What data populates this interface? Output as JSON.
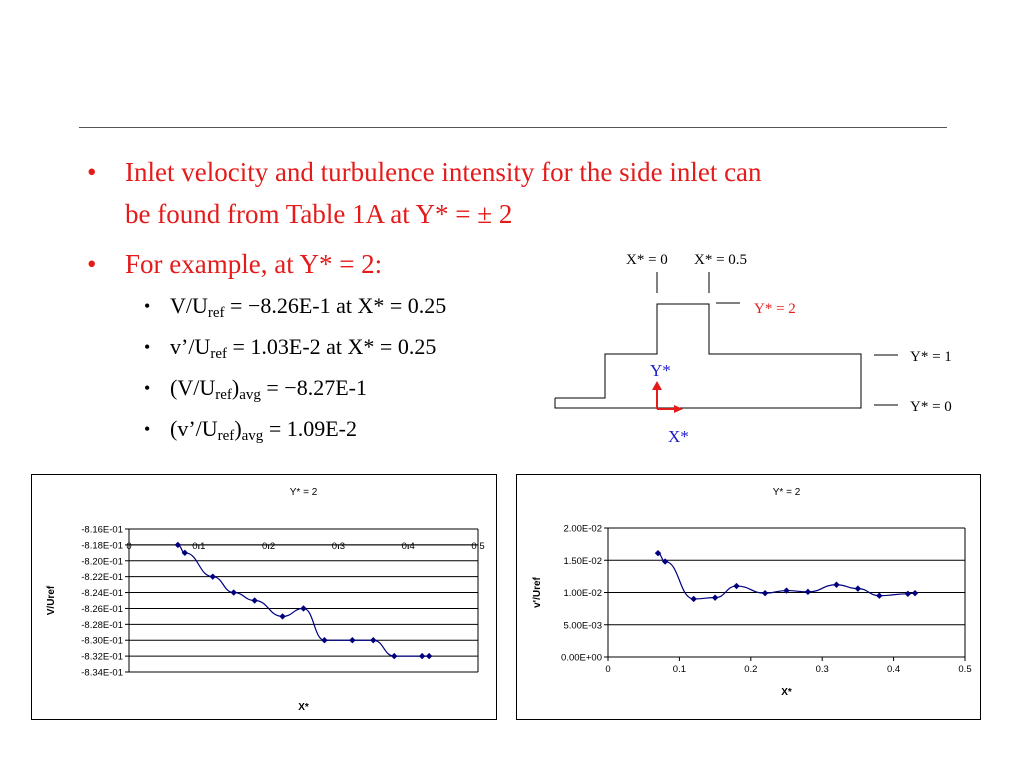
{
  "bullets": {
    "b1_line1": "Inlet velocity and turbulence intensity for the side inlet can",
    "b1_line2": "be found from Table 1A at Y* = ± 2",
    "b2": "For example, at Y* = 2:",
    "dot": "•",
    "sub": [
      {
        "pre": "V/U",
        "sub": "ref",
        "post": " = −8.26E-1 at X* = 0.25"
      },
      {
        "pre": "v’/U",
        "sub": "ref",
        "post": " = 1.03E-2 at X* = 0.25"
      },
      {
        "pre": "(V/U",
        "sub": "ref",
        "mid": ")",
        "sub2": "avg",
        "post": " = −8.27E-1"
      },
      {
        "pre": "(v’/U",
        "sub": "ref",
        "mid": ")",
        "sub2": "avg",
        "post": " = 1.09E-2"
      }
    ]
  },
  "diagram": {
    "x0_label": "X* = 0",
    "x05_label": "X* = 0.5",
    "y2_label": "Y* = 2",
    "y1_label": "Y* = 1",
    "y0_label": "Y* = 0",
    "yaxis_label": "Y*",
    "xaxis_label": "X*",
    "colors": {
      "red": "#e41b1b",
      "blue": "#1a1acc"
    }
  },
  "chart_data": [
    {
      "type": "line",
      "title": "Y* = 2",
      "xlabel": "X*",
      "ylabel": "V/Uref",
      "xlim": [
        0,
        0.5
      ],
      "ylim": [
        -0.834,
        -0.816
      ],
      "xticks": [
        "0",
        "0.1",
        "0.2",
        "0.3",
        "0.4",
        "0.5"
      ],
      "yticks": [
        "-8.16E-01",
        "-8.18E-01",
        "-8.20E-01",
        "-8.22E-01",
        "-8.24E-01",
        "-8.26E-01",
        "-8.28E-01",
        "-8.30E-01",
        "-8.32E-01",
        "-8.34E-01"
      ],
      "x": [
        0.07,
        0.08,
        0.12,
        0.15,
        0.18,
        0.22,
        0.25,
        0.28,
        0.32,
        0.35,
        0.38,
        0.42,
        0.43
      ],
      "y": [
        -0.818,
        -0.819,
        -0.822,
        -0.824,
        -0.825,
        -0.827,
        -0.826,
        -0.83,
        -0.83,
        -0.83,
        -0.832,
        -0.832,
        -0.832
      ],
      "grid": true,
      "color": "#00007f"
    },
    {
      "type": "line",
      "title": "Y* = 2",
      "xlabel": "X*",
      "ylabel": "v'/Uref",
      "xlim": [
        0,
        0.5
      ],
      "ylim": [
        0,
        0.02
      ],
      "xticks": [
        "0",
        "0.1",
        "0.2",
        "0.3",
        "0.4",
        "0.5"
      ],
      "yticks": [
        "2.00E-02",
        "1.50E-02",
        "1.00E-02",
        "5.00E-03",
        "0.00E+00"
      ],
      "x": [
        0.07,
        0.08,
        0.12,
        0.15,
        0.18,
        0.22,
        0.25,
        0.28,
        0.32,
        0.35,
        0.38,
        0.42,
        0.43
      ],
      "y": [
        0.0161,
        0.0148,
        0.009,
        0.0092,
        0.011,
        0.0099,
        0.0103,
        0.0101,
        0.0112,
        0.0106,
        0.0095,
        0.0098,
        0.0099
      ],
      "grid": true,
      "color": "#00007f"
    }
  ]
}
